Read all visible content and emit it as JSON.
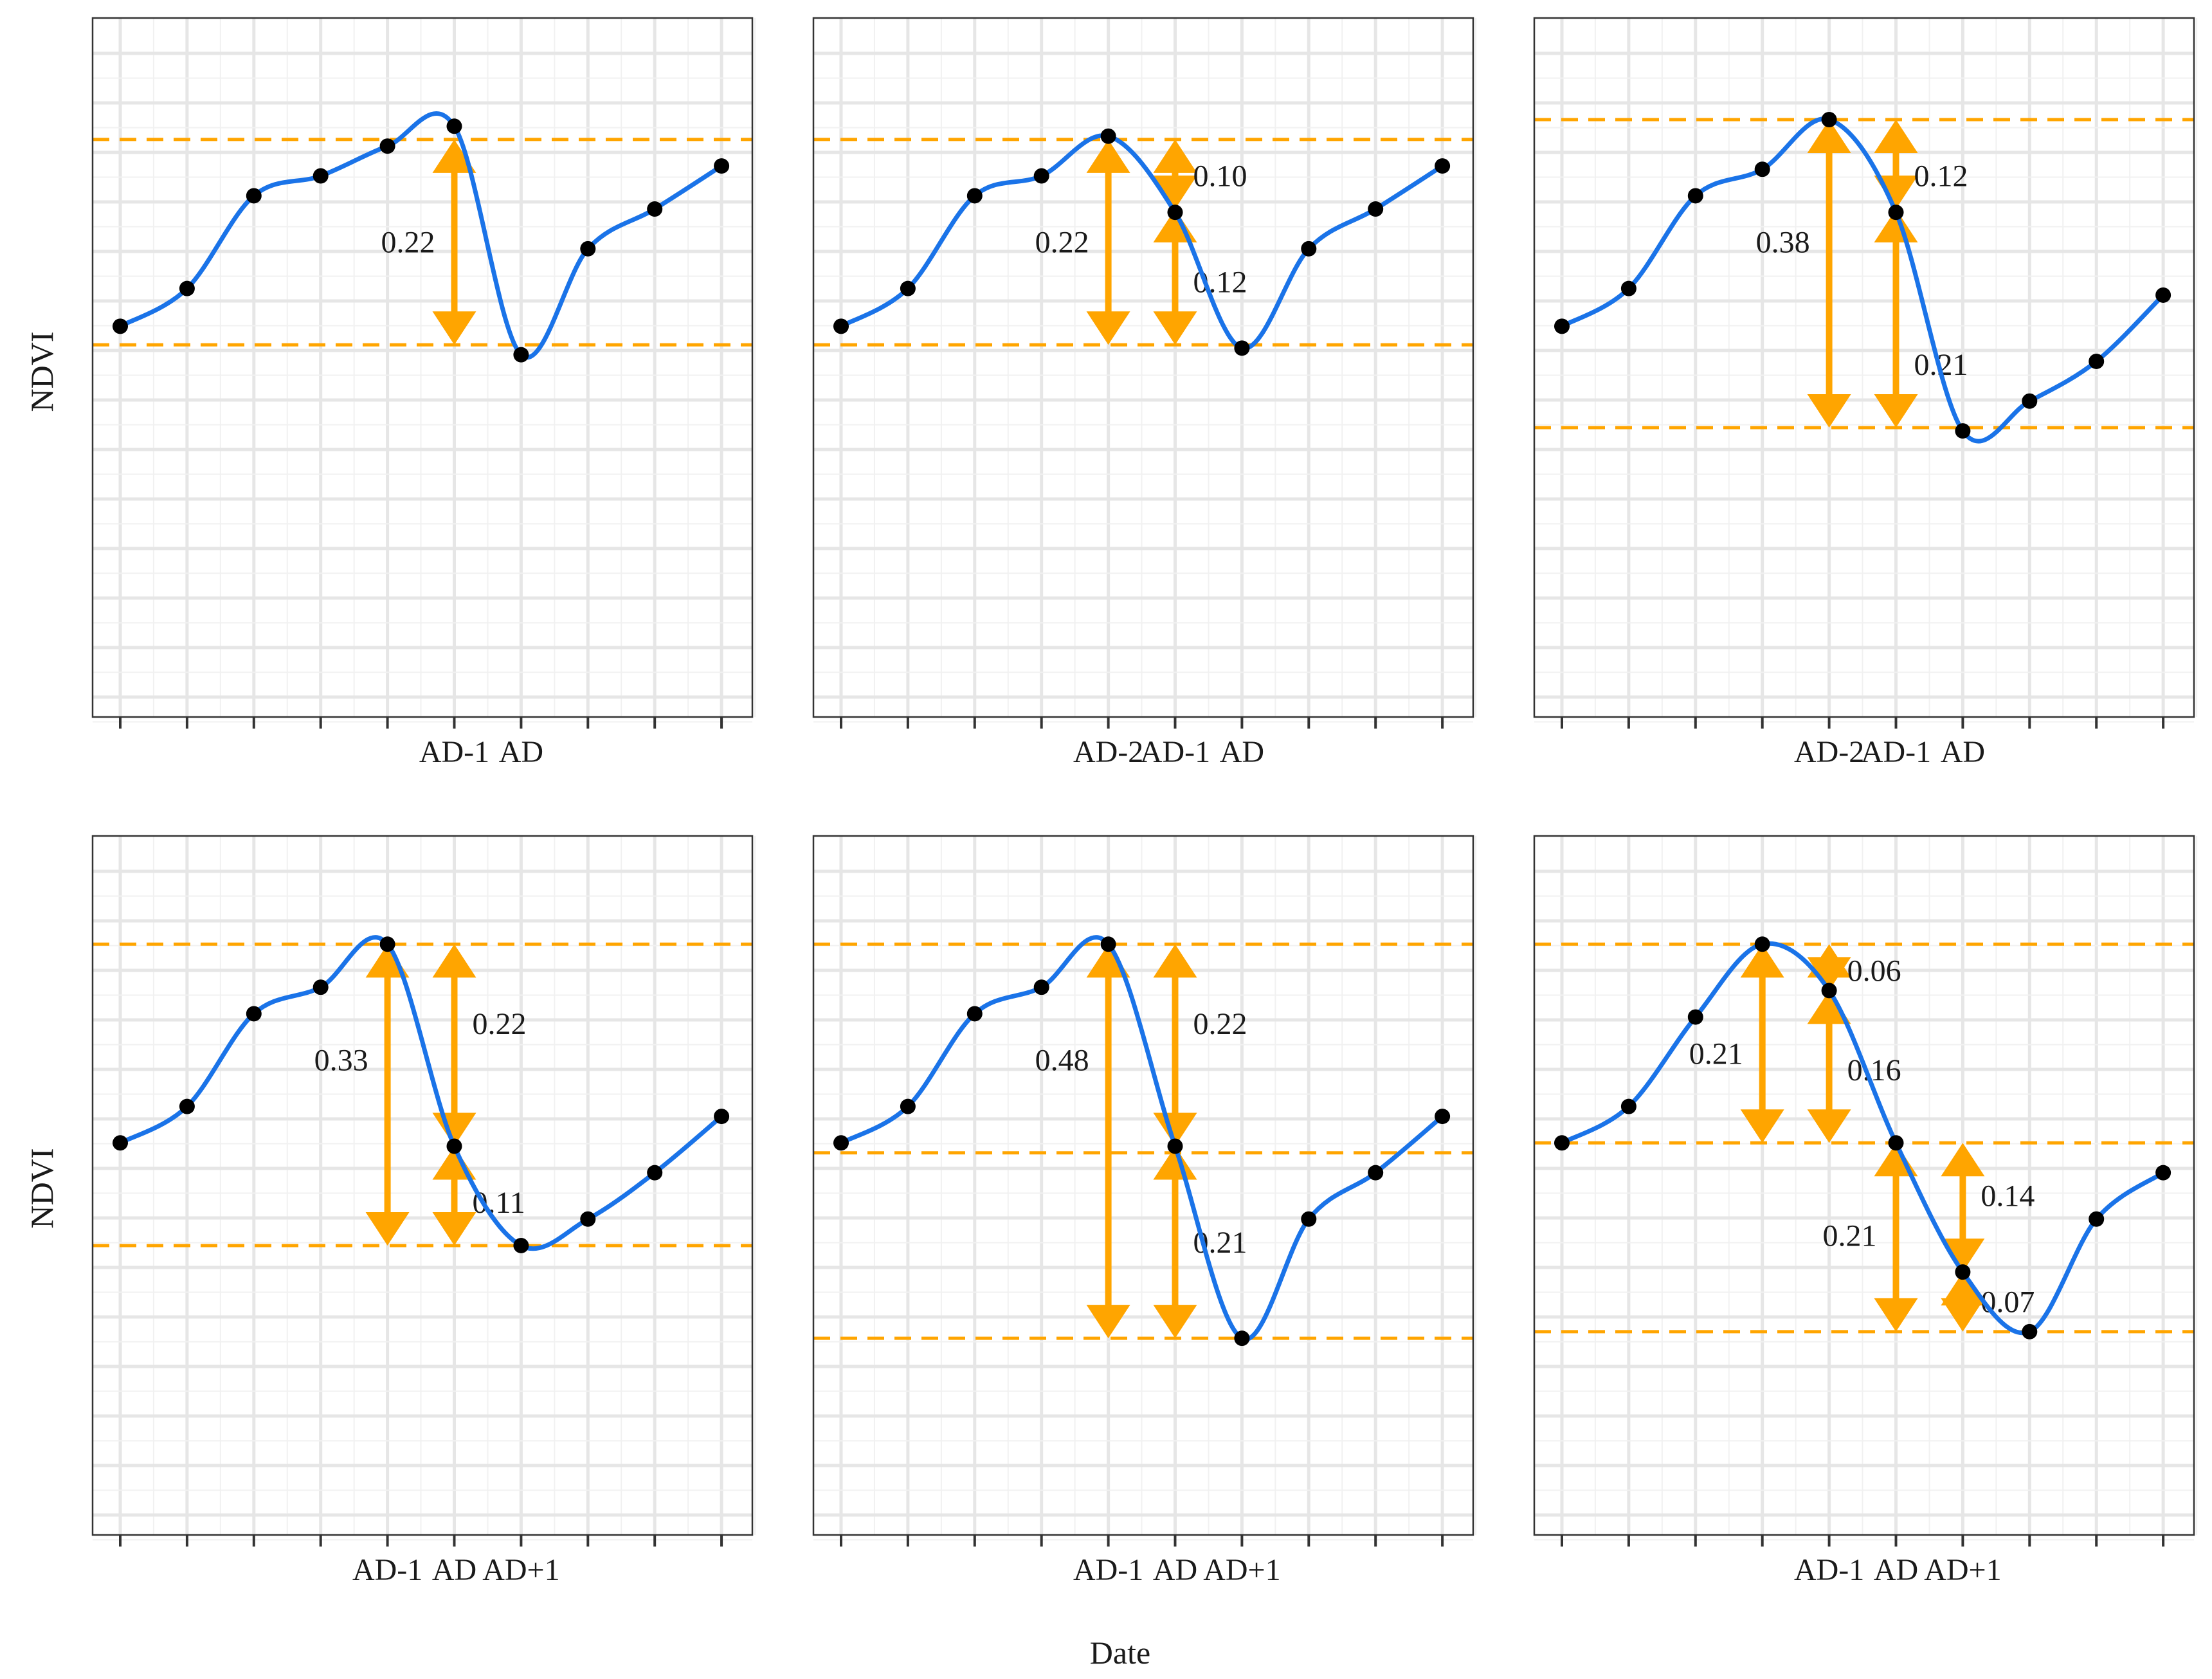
{
  "chart_data": {
    "type": "line",
    "title": "",
    "xlabel": "Date",
    "ylabel": "NDVI",
    "x_ticks": 10,
    "ylim": [
      0,
      1
    ],
    "grid": true,
    "colors": {
      "curve": "#1a73e8",
      "point": "#000000",
      "annotation": "#ffa500",
      "reference": "#ffa500"
    },
    "panels": [
      {
        "id": "panel-1",
        "tick_labels": [
          {
            "x": 5,
            "text": "AD-1"
          },
          {
            "x": 6,
            "text": "AD"
          }
        ],
        "values": [
          0.588,
          0.645,
          0.785,
          0.815,
          0.86,
          0.89,
          0.545,
          0.705,
          0.765,
          0.83
        ],
        "reference_lines": [
          0.87,
          0.56
        ],
        "arrows": [
          {
            "x": 5,
            "from": 0.87,
            "to": 0.56,
            "label": "0.22",
            "label_side": "left",
            "label_y": 0.715
          }
        ]
      },
      {
        "id": "panel-2",
        "tick_labels": [
          {
            "x": 4,
            "text": "AD-2"
          },
          {
            "x": 5,
            "text": "AD-1"
          },
          {
            "x": 6,
            "text": "AD"
          }
        ],
        "values": [
          0.588,
          0.645,
          0.785,
          0.815,
          0.875,
          0.76,
          0.555,
          0.705,
          0.765,
          0.83
        ],
        "reference_lines": [
          0.87,
          0.56
        ],
        "arrows": [
          {
            "x": 4,
            "from": 0.87,
            "to": 0.56,
            "label": "0.22",
            "label_side": "left",
            "label_y": 0.715
          },
          {
            "x": 5,
            "from": 0.87,
            "to": 0.765,
            "label": "0.10",
            "label_side": "right",
            "label_y": 0.815
          },
          {
            "x": 5,
            "from": 0.765,
            "to": 0.56,
            "label": "0.12",
            "label_side": "right",
            "label_y": 0.655
          }
        ]
      },
      {
        "id": "panel-3",
        "tick_labels": [
          {
            "x": 4,
            "text": "AD-2"
          },
          {
            "x": 5,
            "text": "AD-1"
          },
          {
            "x": 6,
            "text": "AD"
          }
        ],
        "values": [
          0.588,
          0.645,
          0.785,
          0.825,
          0.9,
          0.76,
          0.43,
          0.475,
          0.535,
          0.635
        ],
        "reference_lines": [
          0.9,
          0.435
        ],
        "arrows": [
          {
            "x": 4,
            "from": 0.9,
            "to": 0.435,
            "label": "0.38",
            "label_side": "left",
            "label_y": 0.715
          },
          {
            "x": 5,
            "from": 0.9,
            "to": 0.765,
            "label": "0.12",
            "label_side": "right",
            "label_y": 0.815
          },
          {
            "x": 5,
            "from": 0.765,
            "to": 0.435,
            "label": "0.21",
            "label_side": "right",
            "label_y": 0.53
          }
        ]
      },
      {
        "id": "panel-4",
        "tick_labels": [
          {
            "x": 4,
            "text": "AD-1"
          },
          {
            "x": 5,
            "text": "AD"
          },
          {
            "x": 6,
            "text": "AD+1"
          }
        ],
        "values": [
          0.59,
          0.645,
          0.785,
          0.825,
          0.89,
          0.585,
          0.435,
          0.475,
          0.545,
          0.63
        ],
        "reference_lines": [
          0.89,
          0.435
        ],
        "arrows": [
          {
            "x": 4,
            "from": 0.89,
            "to": 0.435,
            "label": "0.33",
            "label_side": "left",
            "label_y": 0.715
          },
          {
            "x": 5,
            "from": 0.89,
            "to": 0.585,
            "label": "0.22",
            "label_side": "right",
            "label_y": 0.77
          },
          {
            "x": 5,
            "from": 0.585,
            "to": 0.435,
            "label": "0.11",
            "label_side": "right",
            "label_y": 0.5
          }
        ]
      },
      {
        "id": "panel-5",
        "tick_labels": [
          {
            "x": 4,
            "text": "AD-1"
          },
          {
            "x": 5,
            "text": "AD"
          },
          {
            "x": 6,
            "text": "AD+1"
          }
        ],
        "values": [
          0.59,
          0.645,
          0.785,
          0.825,
          0.89,
          0.585,
          0.295,
          0.475,
          0.545,
          0.63
        ],
        "reference_lines": [
          0.89,
          0.575,
          0.295
        ],
        "arrows": [
          {
            "x": 4,
            "from": 0.89,
            "to": 0.295,
            "label": "0.48",
            "label_side": "left",
            "label_y": 0.715
          },
          {
            "x": 5,
            "from": 0.89,
            "to": 0.585,
            "label": "0.22",
            "label_side": "right",
            "label_y": 0.77
          },
          {
            "x": 5,
            "from": 0.585,
            "to": 0.295,
            "label": "0.21",
            "label_side": "right",
            "label_y": 0.44
          }
        ]
      },
      {
        "id": "panel-6",
        "tick_labels": [
          {
            "x": 4,
            "text": "AD-1"
          },
          {
            "x": 5,
            "text": "AD"
          },
          {
            "x": 6,
            "text": "AD+1"
          }
        ],
        "values": [
          0.59,
          0.645,
          0.78,
          0.89,
          0.82,
          0.59,
          0.395,
          0.305,
          0.475,
          0.545
        ],
        "reference_lines": [
          0.89,
          0.59,
          0.305
        ],
        "arrows": [
          {
            "x": 3,
            "from": 0.89,
            "to": 0.59,
            "label": "0.21",
            "label_side": "left",
            "label_y": 0.725
          },
          {
            "x": 4,
            "from": 0.89,
            "to": 0.82,
            "label": "0.06",
            "label_side": "right",
            "label_y": 0.85
          },
          {
            "x": 4,
            "from": 0.82,
            "to": 0.59,
            "label": "0.16",
            "label_side": "right",
            "label_y": 0.7
          },
          {
            "x": 5,
            "from": 0.59,
            "to": 0.305,
            "label": "0.21",
            "label_side": "left",
            "label_y": 0.45
          },
          {
            "x": 6,
            "from": 0.59,
            "to": 0.395,
            "label": "0.14",
            "label_side": "right",
            "label_y": 0.51
          },
          {
            "x": 6,
            "from": 0.395,
            "to": 0.305,
            "label": "0.07",
            "label_side": "right",
            "label_y": 0.35
          }
        ]
      }
    ]
  }
}
